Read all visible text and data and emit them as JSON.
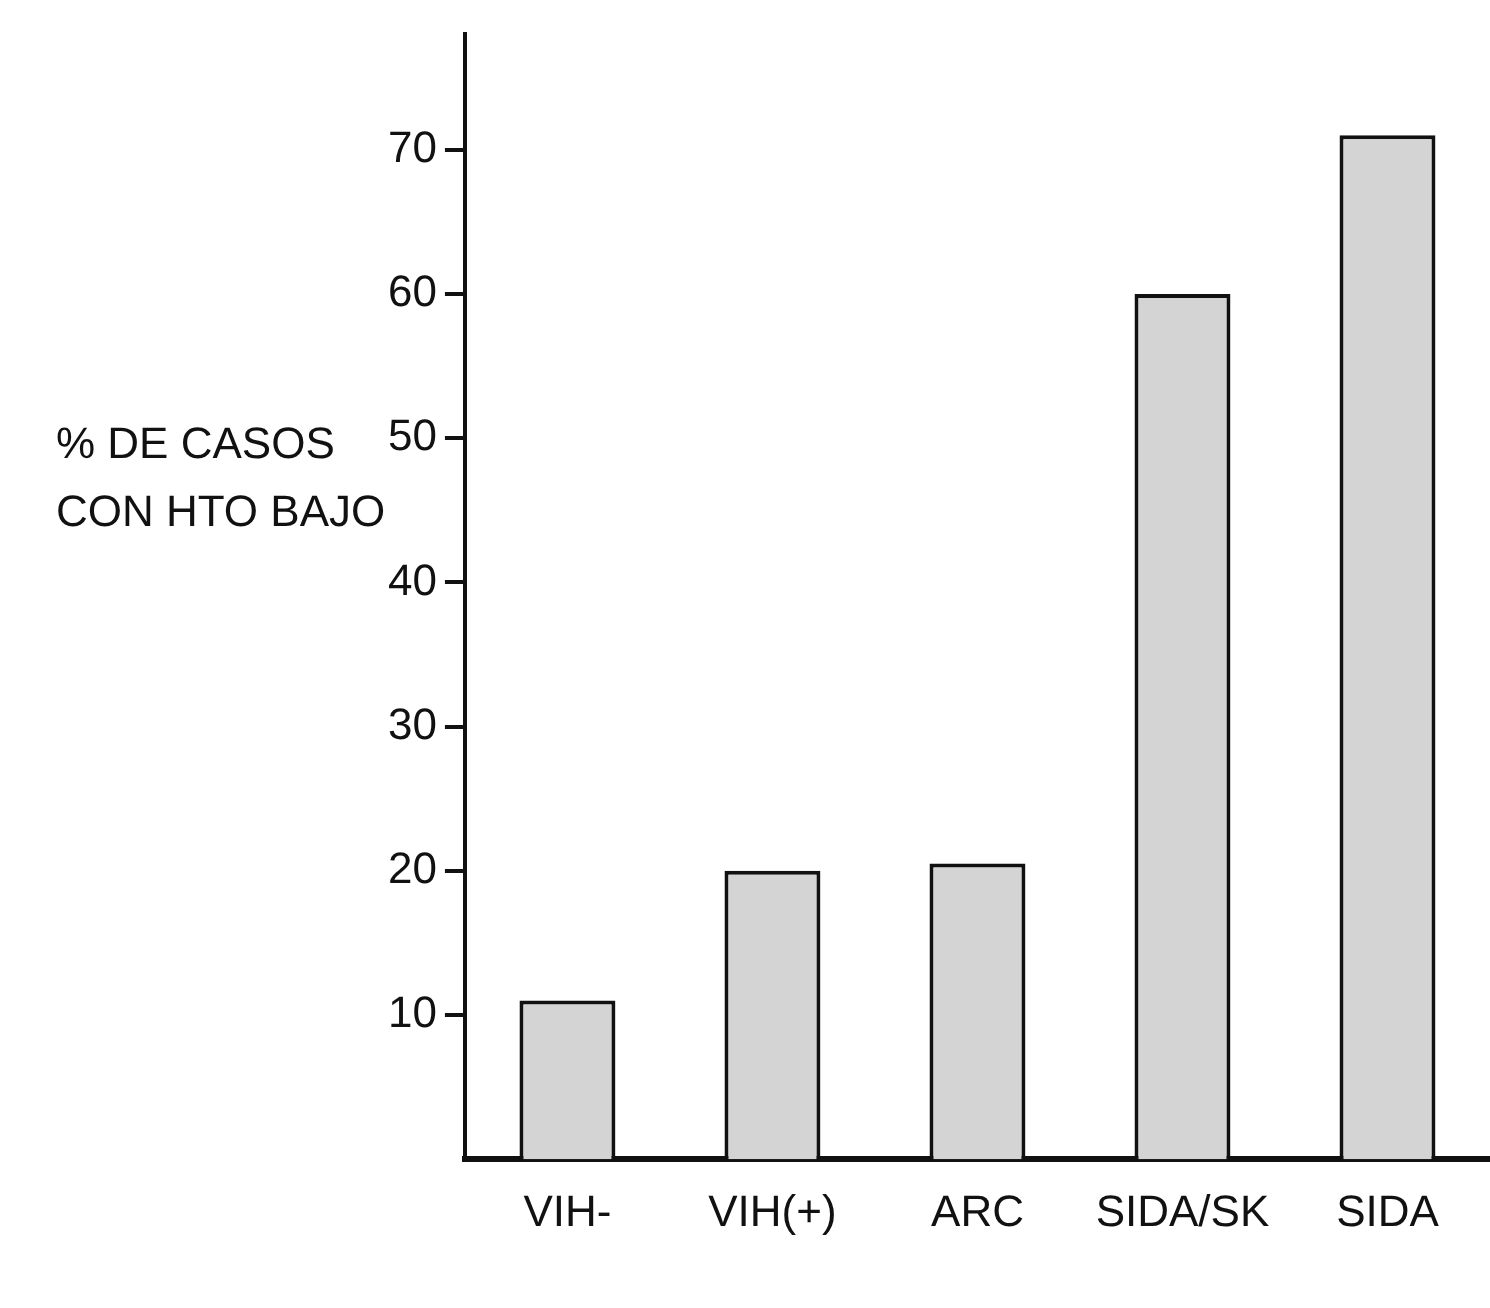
{
  "chart_data": {
    "type": "bar",
    "ylabel": "% DE CASOS CON HTO BAJO",
    "categories": [
      "VIH-",
      "VIH(+)",
      "ARC",
      "SIDA/SK",
      "SIDA"
    ],
    "values": [
      11,
      20,
      20.5,
      60,
      71
    ],
    "color": "#d4d4d4",
    "ylim": [
      0,
      78
    ],
    "yticks": [
      10,
      20,
      30,
      40,
      50,
      60,
      70
    ]
  }
}
